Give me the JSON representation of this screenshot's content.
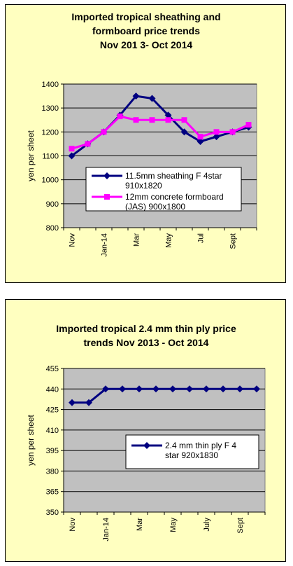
{
  "chart_data": [
    {
      "type": "line",
      "title_lines": [
        "Imported tropical sheathing and",
        "formboard price trends",
        "Nov 201 3-  Oct 2014"
      ],
      "xlabel": "",
      "ylabel": "yen per sheet",
      "ylim": [
        800,
        1400
      ],
      "yticks": [
        800,
        900,
        1000,
        1100,
        1200,
        1300,
        1400
      ],
      "x_tick_labels": [
        "Nov",
        "",
        "Jan-14",
        "",
        "Mar",
        "",
        "May",
        "",
        "Jul",
        "",
        "Sept",
        ""
      ],
      "grid": true,
      "legend_placement": "center-right",
      "series": [
        {
          "name": "11.5mm sheathing F 4star 910x1820",
          "legend_lines": [
            "11.5mm sheathing F 4star",
            "910x1820"
          ],
          "color": "#000080",
          "marker": "diamond",
          "values": [
            1100,
            1150,
            1200,
            1270,
            1350,
            1340,
            1270,
            1200,
            1160,
            1180,
            1200,
            1220
          ]
        },
        {
          "name": "12mm concrete formboard (JAS) 900x1800",
          "legend_lines": [
            "12mm concrete formboard",
            "(JAS) 900x1800"
          ],
          "color": "#ff00ff",
          "marker": "square",
          "values": [
            1130,
            1150,
            1200,
            1265,
            1250,
            1250,
            1250,
            1250,
            1180,
            1200,
            1200,
            1230
          ]
        }
      ]
    },
    {
      "type": "line",
      "title_lines": [
        "Imported tropical 2.4 mm thin ply price",
        "trends  Nov 2013 -  Oct 2014"
      ],
      "xlabel": "",
      "ylabel": "yen per sheet",
      "ylim": [
        350,
        455
      ],
      "yticks": [
        350,
        365,
        380,
        395,
        410,
        425,
        440,
        455
      ],
      "x_tick_labels": [
        "Nov",
        "",
        "Jan-14",
        "",
        "Mar",
        "",
        "May",
        "",
        "July",
        "",
        "Sept",
        ""
      ],
      "grid": true,
      "legend_placement": "center-right",
      "series": [
        {
          "name": "2.4 mm thin ply F 4 star 920x1830",
          "legend_lines": [
            "2.4 mm thin ply F 4",
            "star 920x1830"
          ],
          "color": "#000080",
          "marker": "diamond",
          "values": [
            430,
            430,
            440,
            440,
            440,
            440,
            440,
            440,
            440,
            440,
            440,
            440
          ]
        }
      ]
    }
  ]
}
